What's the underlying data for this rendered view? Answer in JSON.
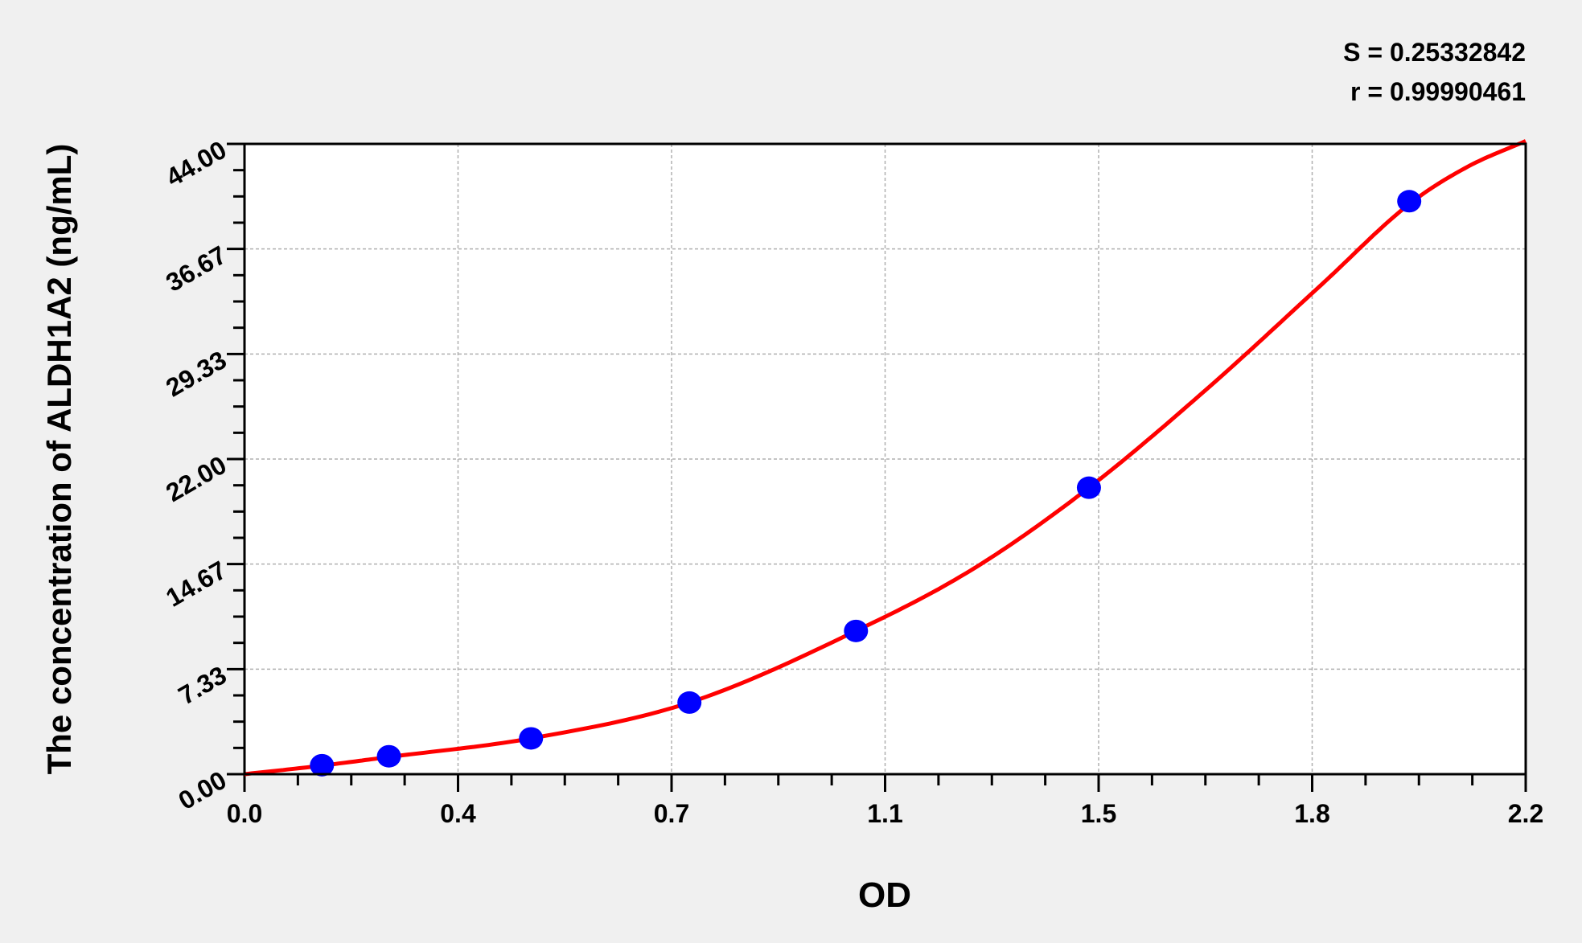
{
  "chart_data": {
    "type": "scatter",
    "title": "",
    "xlabel": "OD",
    "ylabel": "The concentration of ALDH1A2 (ng/mL)",
    "xlim": [
      0,
      2.2
    ],
    "ylim": [
      0,
      44
    ],
    "x_ticks": [
      "0.0",
      "0.4",
      "0.7",
      "1.1",
      "1.5",
      "1.8",
      "2.2"
    ],
    "y_ticks": [
      "0.00",
      "7.33",
      "14.67",
      "22.00",
      "29.33",
      "36.67",
      "44.00"
    ],
    "grid": true,
    "stats": {
      "s_label": "S = 0.25332842",
      "r_label": "r = 0.99990461"
    },
    "points": {
      "x": [
        0.133,
        0.248,
        0.492,
        0.764,
        1.05,
        1.45,
        2.0
      ],
      "y": [
        0.625,
        1.25,
        2.5,
        5,
        10,
        20,
        40
      ]
    },
    "fit_curve": {
      "x": [
        0,
        0.133,
        0.248,
        0.492,
        0.764,
        1.05,
        1.25,
        1.45,
        1.65,
        1.85,
        2.0,
        2.1,
        2.2
      ],
      "y": [
        0,
        0.6,
        1.2,
        2.5,
        5,
        10,
        14.3,
        20,
        26.8,
        34.2,
        39.8,
        42.4,
        44.2
      ]
    },
    "colors": {
      "points": "#0000ff",
      "curve": "#ff0000",
      "grid": "#b0b0b0",
      "background": "#f0f0f0"
    }
  }
}
